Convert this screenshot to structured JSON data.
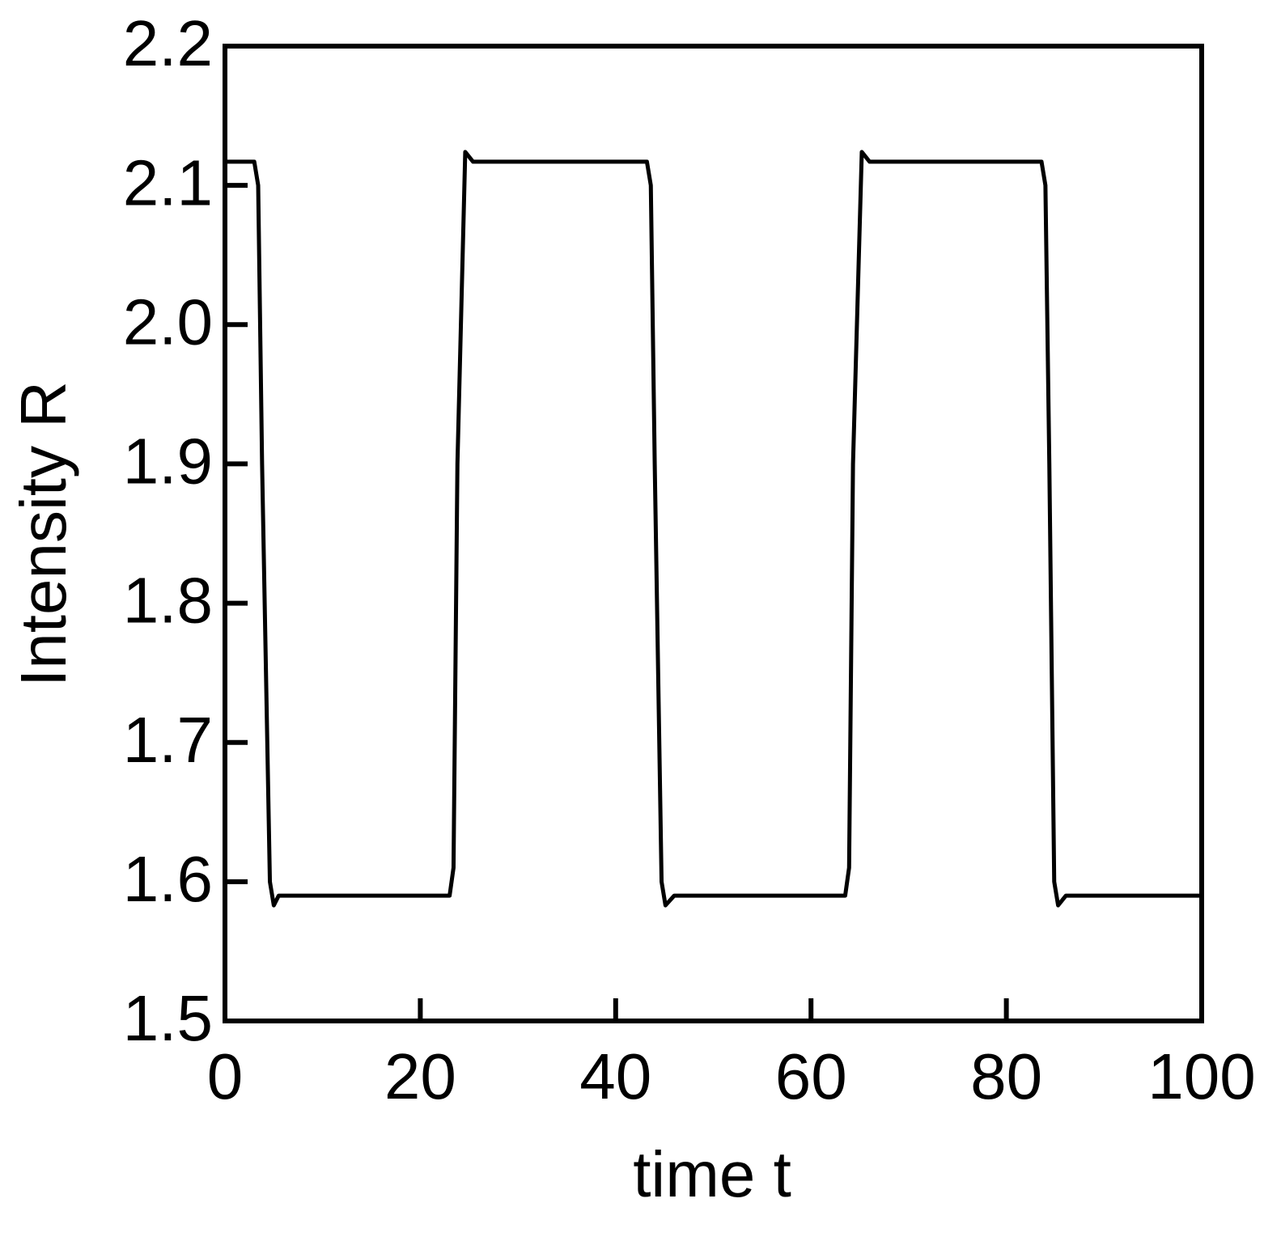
{
  "chart_data": {
    "type": "line",
    "x_label": "time t",
    "y_label": "Intensity R",
    "xlim": [
      0,
      100
    ],
    "xticks": [
      0,
      20,
      40,
      60,
      80,
      100
    ],
    "ylim": [
      1.5,
      2.2
    ],
    "yticks": [
      1.5,
      1.6,
      1.7,
      1.8,
      1.9,
      {
        "value": 2,
        "label": "2.0"
      },
      2.1,
      2.2
    ],
    "grid": false,
    "series": [
      {
        "color": "#000000",
        "x": [
          0,
          3.0,
          3.4,
          3.8,
          4.6,
          5.0,
          5.5,
          23.0,
          23.4,
          23.8,
          24.6,
          25.4,
          43.2,
          43.6,
          44.0,
          44.7,
          45.1,
          46.0,
          63.5,
          63.9,
          64.3,
          65.2,
          66.0,
          83.6,
          84.0,
          84.4,
          84.9,
          85.3,
          86.1,
          100
        ],
        "values": [
          2.117,
          2.117,
          2.1,
          1.9,
          1.6,
          1.583,
          1.59,
          1.59,
          1.61,
          1.9,
          2.124,
          2.117,
          2.117,
          2.1,
          1.9,
          1.6,
          1.583,
          1.59,
          1.59,
          1.61,
          1.9,
          2.124,
          2.117,
          2.117,
          2.1,
          1.9,
          1.6,
          1.583,
          1.59,
          1.59
        ]
      }
    ]
  }
}
